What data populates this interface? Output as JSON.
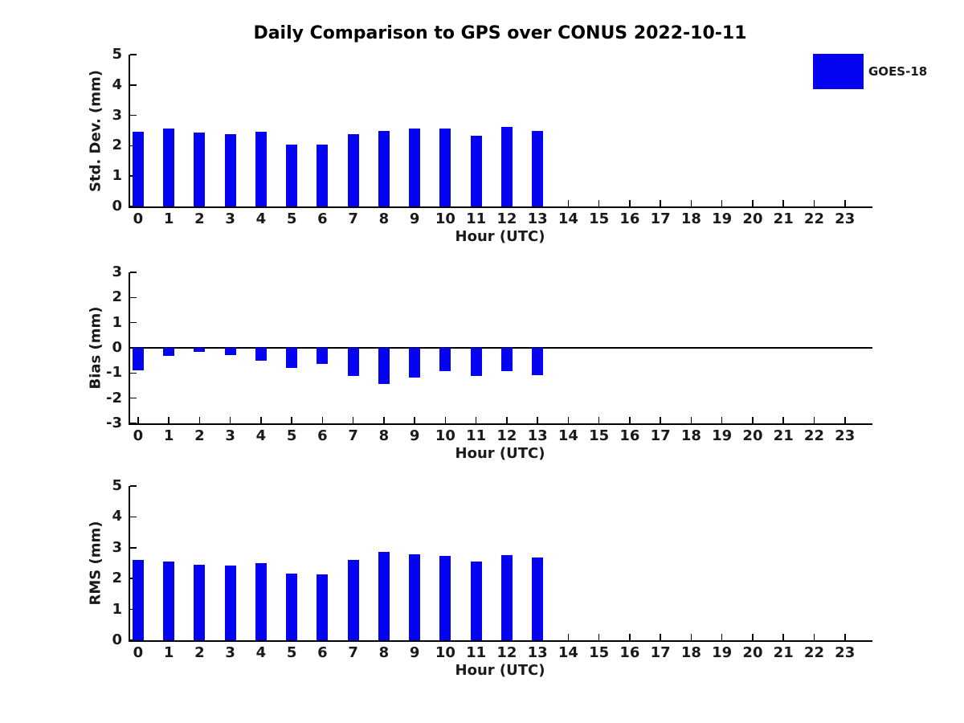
{
  "title": "Daily Comparison to GPS over CONUS 2022-10-11",
  "legend": {
    "label": "GOES-18",
    "color": "#0404f2"
  },
  "colors": {
    "bar": "#0404f2",
    "text": "#1a1a1a",
    "axis": "#000000",
    "background": "#ffffff"
  },
  "chart_data": [
    {
      "type": "bar",
      "ylabel": "Std. Dev. (mm)",
      "xlabel": "Hour (UTC)",
      "x": [
        0,
        1,
        2,
        3,
        4,
        5,
        6,
        7,
        8,
        9,
        10,
        11,
        12,
        13
      ],
      "xticks": [
        0,
        1,
        2,
        3,
        4,
        5,
        6,
        7,
        8,
        9,
        10,
        11,
        12,
        13,
        14,
        15,
        16,
        17,
        18,
        19,
        20,
        21,
        22,
        23
      ],
      "xlim": [
        -0.31,
        23.87
      ],
      "ylim": [
        0,
        5
      ],
      "yticks": [
        0,
        1,
        2,
        3,
        4,
        5
      ],
      "zero_line": false,
      "series": [
        {
          "name": "GOES-18",
          "color": "#0404f2",
          "values": [
            2.47,
            2.57,
            2.43,
            2.38,
            2.46,
            2.03,
            2.05,
            2.38,
            2.49,
            2.57,
            2.57,
            2.32,
            2.63,
            2.48
          ]
        }
      ]
    },
    {
      "type": "bar",
      "ylabel": "Bias (mm)",
      "xlabel": "Hour (UTC)",
      "x": [
        0,
        1,
        2,
        3,
        4,
        5,
        6,
        7,
        8,
        9,
        10,
        11,
        12,
        13
      ],
      "xticks": [
        0,
        1,
        2,
        3,
        4,
        5,
        6,
        7,
        8,
        9,
        10,
        11,
        12,
        13,
        14,
        15,
        16,
        17,
        18,
        19,
        20,
        21,
        22,
        23
      ],
      "xlim": [
        -0.31,
        23.87
      ],
      "ylim": [
        -3,
        3
      ],
      "yticks": [
        -3,
        -2,
        -1,
        0,
        1,
        2,
        3
      ],
      "zero_line": true,
      "series": [
        {
          "name": "GOES-18",
          "color": "#0404f2",
          "values": [
            -0.88,
            -0.33,
            -0.16,
            -0.3,
            -0.52,
            -0.8,
            -0.64,
            -1.12,
            -1.44,
            -1.18,
            -0.94,
            -1.13,
            -0.92,
            -1.08
          ]
        }
      ]
    },
    {
      "type": "bar",
      "ylabel": "RMS (mm)",
      "xlabel": "Hour (UTC)",
      "x": [
        0,
        1,
        2,
        3,
        4,
        5,
        6,
        7,
        8,
        9,
        10,
        11,
        12,
        13
      ],
      "xticks": [
        0,
        1,
        2,
        3,
        4,
        5,
        6,
        7,
        8,
        9,
        10,
        11,
        12,
        13,
        14,
        15,
        16,
        17,
        18,
        19,
        20,
        21,
        22,
        23
      ],
      "xlim": [
        -0.31,
        23.87
      ],
      "ylim": [
        0,
        5
      ],
      "yticks": [
        0,
        1,
        2,
        3,
        4,
        5
      ],
      "zero_line": false,
      "series": [
        {
          "name": "GOES-18",
          "color": "#0404f2",
          "values": [
            2.61,
            2.56,
            2.44,
            2.41,
            2.49,
            2.16,
            2.14,
            2.61,
            2.87,
            2.79,
            2.73,
            2.56,
            2.77,
            2.67
          ]
        }
      ]
    }
  ]
}
